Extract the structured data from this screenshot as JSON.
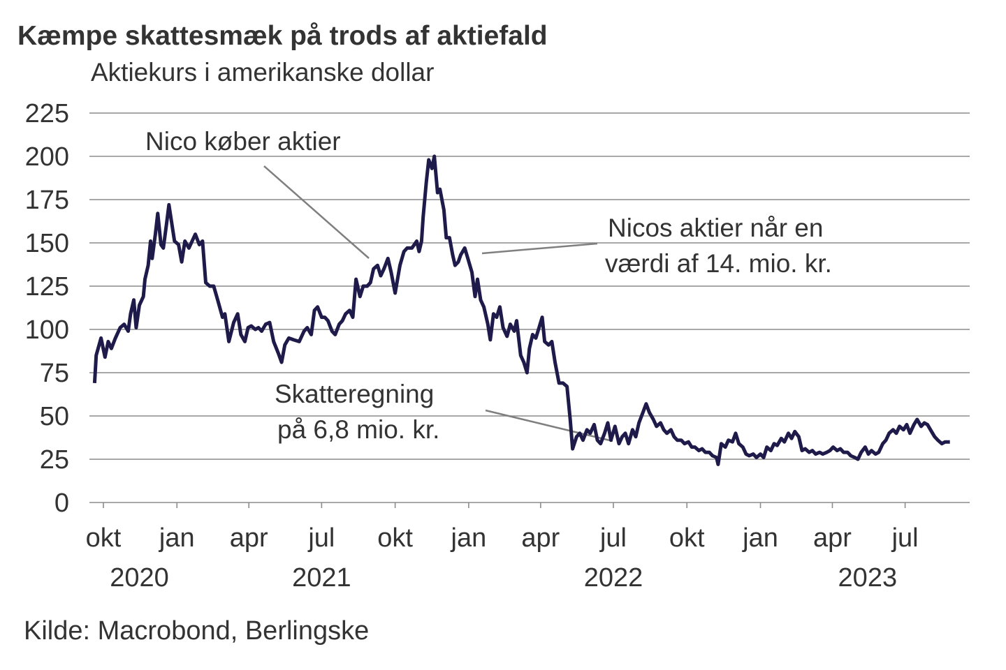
{
  "chart_data": {
    "type": "line",
    "title": "Kæmpe skattesmæk på trods af aktiefald",
    "subtitle": "Aktiekurs i amerikanske dollar",
    "source": "Kilde: Macrobond, Berlingske",
    "ylim": [
      0,
      225
    ],
    "yticks": [
      0,
      25,
      50,
      75,
      100,
      125,
      150,
      175,
      200,
      225
    ],
    "grid": true,
    "line_color": "#1e1a4a",
    "xticks": [
      {
        "date": "2020-10-01",
        "label": "okt"
      },
      {
        "date": "2021-01-01",
        "label": "jan"
      },
      {
        "date": "2021-04-01",
        "label": "apr"
      },
      {
        "date": "2021-07-01",
        "label": "jul"
      },
      {
        "date": "2021-10-01",
        "label": "okt"
      },
      {
        "date": "2022-01-01",
        "label": "jan"
      },
      {
        "date": "2022-04-01",
        "label": "apr"
      },
      {
        "date": "2022-07-01",
        "label": "jul"
      },
      {
        "date": "2022-10-01",
        "label": "okt"
      },
      {
        "date": "2023-01-01",
        "label": "jan"
      },
      {
        "date": "2023-04-01",
        "label": "apr"
      },
      {
        "date": "2023-07-01",
        "label": "jul"
      }
    ],
    "year_labels": [
      {
        "date": "2020-11-15",
        "label": "2020"
      },
      {
        "date": "2021-07-01",
        "label": "2021"
      },
      {
        "date": "2022-07-01",
        "label": "2022"
      },
      {
        "date": "2023-05-15",
        "label": "2023"
      }
    ],
    "annotations": [
      {
        "lines": [
          "Nico køber aktier"
        ]
      },
      {
        "lines": [
          "Nicos aktier når en",
          "værdi af 14. mio. kr."
        ]
      },
      {
        "lines": [
          "Skatteregning",
          "på 6,8 mio. kr."
        ]
      }
    ],
    "series": [
      {
        "x": [
          "2020-09-20",
          "2020-09-22",
          "2020-09-28",
          "2020-10-03",
          "2020-10-07",
          "2020-10-11",
          "2020-10-16",
          "2020-10-22",
          "2020-10-27",
          "2020-11-01",
          "2020-11-04",
          "2020-11-08",
          "2020-11-11",
          "2020-11-15",
          "2020-11-20",
          "2020-11-22",
          "2020-11-26",
          "2020-11-29",
          "2020-12-01",
          "2020-12-05",
          "2020-12-08",
          "2020-12-12",
          "2020-12-15",
          "2020-12-19",
          "2020-12-22",
          "2020-12-27",
          "2020-12-29",
          "2021-01-03",
          "2021-01-07",
          "2021-01-11",
          "2021-01-16",
          "2021-01-20",
          "2021-01-24",
          "2021-01-29",
          "2021-02-02",
          "2021-02-06",
          "2021-02-11",
          "2021-02-16",
          "2021-02-21",
          "2021-02-27",
          "2021-03-02",
          "2021-03-07",
          "2021-03-13",
          "2021-03-18",
          "2021-03-22",
          "2021-03-27",
          "2021-03-31",
          "2021-04-04",
          "2021-04-09",
          "2021-04-13",
          "2021-04-17",
          "2021-04-22",
          "2021-04-27",
          "2021-05-02",
          "2021-05-08",
          "2021-05-12",
          "2021-05-16",
          "2021-05-21",
          "2021-05-27",
          "2021-06-03",
          "2021-06-09",
          "2021-06-13",
          "2021-06-18",
          "2021-06-22",
          "2021-06-26",
          "2021-07-01",
          "2021-07-05",
          "2021-07-09",
          "2021-07-14",
          "2021-07-18",
          "2021-07-23",
          "2021-07-27",
          "2021-07-31",
          "2021-08-05",
          "2021-08-09",
          "2021-08-13",
          "2021-08-18",
          "2021-08-22",
          "2021-08-27",
          "2021-08-31",
          "2021-09-04",
          "2021-09-09",
          "2021-09-13",
          "2021-09-17",
          "2021-09-22",
          "2021-09-26",
          "2021-10-01",
          "2021-10-07",
          "2021-10-12",
          "2021-10-16",
          "2021-10-22",
          "2021-10-28",
          "2021-10-31",
          "2021-11-03",
          "2021-11-05",
          "2021-11-09",
          "2021-11-12",
          "2021-11-16",
          "2021-11-19",
          "2021-11-23",
          "2021-11-26",
          "2021-12-01",
          "2021-12-04",
          "2021-12-08",
          "2021-12-12",
          "2021-12-15",
          "2021-12-19",
          "2021-12-22",
          "2021-12-27",
          "2021-12-31",
          "2022-01-05",
          "2022-01-09",
          "2022-01-12",
          "2022-01-16",
          "2022-01-20",
          "2022-01-25",
          "2022-01-28",
          "2022-02-01",
          "2022-02-05",
          "2022-02-09",
          "2022-02-13",
          "2022-02-18",
          "2022-02-22",
          "2022-02-27",
          "2022-03-02",
          "2022-03-07",
          "2022-03-11",
          "2022-03-15",
          "2022-03-18",
          "2022-03-22",
          "2022-03-26",
          "2022-03-30",
          "2022-04-03",
          "2022-04-06",
          "2022-04-11",
          "2022-04-15",
          "2022-04-19",
          "2022-04-24",
          "2022-04-29",
          "2022-05-04",
          "2022-05-08",
          "2022-05-11",
          "2022-05-16",
          "2022-05-20",
          "2022-05-24",
          "2022-05-29",
          "2022-06-02",
          "2022-06-07",
          "2022-06-11",
          "2022-06-15",
          "2022-06-20",
          "2022-06-24",
          "2022-06-28",
          "2022-07-03",
          "2022-07-08",
          "2022-07-12",
          "2022-07-16",
          "2022-07-20",
          "2022-07-25",
          "2022-07-29",
          "2022-08-02",
          "2022-08-07",
          "2022-08-11",
          "2022-08-15",
          "2022-08-20",
          "2022-08-24",
          "2022-08-29",
          "2022-09-02",
          "2022-09-06",
          "2022-09-11",
          "2022-09-15",
          "2022-09-19",
          "2022-09-24",
          "2022-09-28",
          "2022-10-03",
          "2022-10-07",
          "2022-10-11",
          "2022-10-16",
          "2022-10-20",
          "2022-10-24",
          "2022-10-29",
          "2022-11-02",
          "2022-11-07",
          "2022-11-09",
          "2022-11-13",
          "2022-11-18",
          "2022-11-22",
          "2022-11-27",
          "2022-12-01",
          "2022-12-05",
          "2022-12-10",
          "2022-12-14",
          "2022-12-18",
          "2022-12-23",
          "2022-12-27",
          "2023-01-01",
          "2023-01-05",
          "2023-01-09",
          "2023-01-14",
          "2023-01-18",
          "2023-01-22",
          "2023-01-27",
          "2023-01-31",
          "2023-02-05",
          "2023-02-09",
          "2023-02-13",
          "2023-02-18",
          "2023-02-22",
          "2023-02-26",
          "2023-03-03",
          "2023-03-07",
          "2023-03-11",
          "2023-03-16",
          "2023-03-20",
          "2023-03-25",
          "2023-03-29",
          "2023-04-02",
          "2023-04-07",
          "2023-04-11",
          "2023-04-15",
          "2023-04-20",
          "2023-04-24",
          "2023-04-29",
          "2023-05-03",
          "2023-05-07",
          "2023-05-12",
          "2023-05-16",
          "2023-05-20",
          "2023-05-25",
          "2023-05-29",
          "2023-06-03",
          "2023-06-07",
          "2023-06-11",
          "2023-06-16",
          "2023-06-20",
          "2023-06-24",
          "2023-06-29",
          "2023-07-03",
          "2023-07-07",
          "2023-07-12",
          "2023-07-16",
          "2023-07-21",
          "2023-07-25",
          "2023-07-29",
          "2023-08-03",
          "2023-08-07",
          "2023-08-11",
          "2023-08-16",
          "2023-08-20",
          "2023-08-26"
        ],
        "y": [
          69,
          85,
          95,
          84,
          93,
          89,
          95,
          101,
          103,
          99,
          109,
          117,
          101,
          114,
          119,
          129,
          137,
          151,
          141,
          155,
          167,
          149,
          147,
          161,
          172,
          157,
          151,
          149,
          139,
          151,
          147,
          151,
          155,
          149,
          151,
          127,
          125,
          125,
          117,
          107,
          109,
          93,
          104,
          109,
          97,
          93,
          101,
          102,
          100,
          101,
          99,
          103,
          104,
          93,
          86,
          81,
          91,
          95,
          94,
          93,
          99,
          101,
          97,
          111,
          113,
          107,
          107,
          105,
          99,
          97,
          103,
          105,
          109,
          111,
          107,
          129,
          119,
          125,
          125,
          127,
          135,
          137,
          131,
          135,
          141,
          133,
          121,
          137,
          145,
          147,
          147,
          151,
          145,
          151,
          165,
          185,
          198,
          193,
          200,
          179,
          181,
          169,
          153,
          153,
          143,
          137,
          139,
          143,
          147,
          141,
          133,
          119,
          129,
          117,
          113,
          103,
          94,
          109,
          107,
          113,
          101,
          96,
          103,
          99,
          105,
          85,
          81,
          75,
          89,
          97,
          95,
          101,
          107,
          93,
          91,
          93,
          81,
          69,
          69,
          67,
          48,
          31,
          38,
          40,
          36,
          42,
          40,
          45,
          36,
          34,
          40,
          46,
          36,
          44,
          34,
          38,
          40,
          34,
          42,
          38,
          46,
          52,
          57,
          52,
          48,
          44,
          46,
          42,
          40,
          42,
          38,
          36,
          36,
          34,
          35,
          32,
          32,
          30,
          31,
          29,
          29,
          27,
          26,
          22,
          34,
          32,
          36,
          35,
          40,
          34,
          32,
          28,
          27,
          28,
          26,
          28,
          26,
          32,
          30,
          34,
          33,
          37,
          35,
          40,
          37,
          41,
          38,
          30,
          31,
          29,
          30,
          28,
          29,
          28,
          29,
          30,
          32,
          30,
          31,
          29,
          29,
          27,
          26,
          25,
          29,
          32,
          28,
          30,
          28,
          29,
          34,
          36,
          40,
          42,
          40,
          44,
          42,
          45,
          40,
          45,
          48,
          44,
          46,
          45,
          41,
          38,
          36,
          34,
          35,
          35
        ]
      }
    ]
  }
}
